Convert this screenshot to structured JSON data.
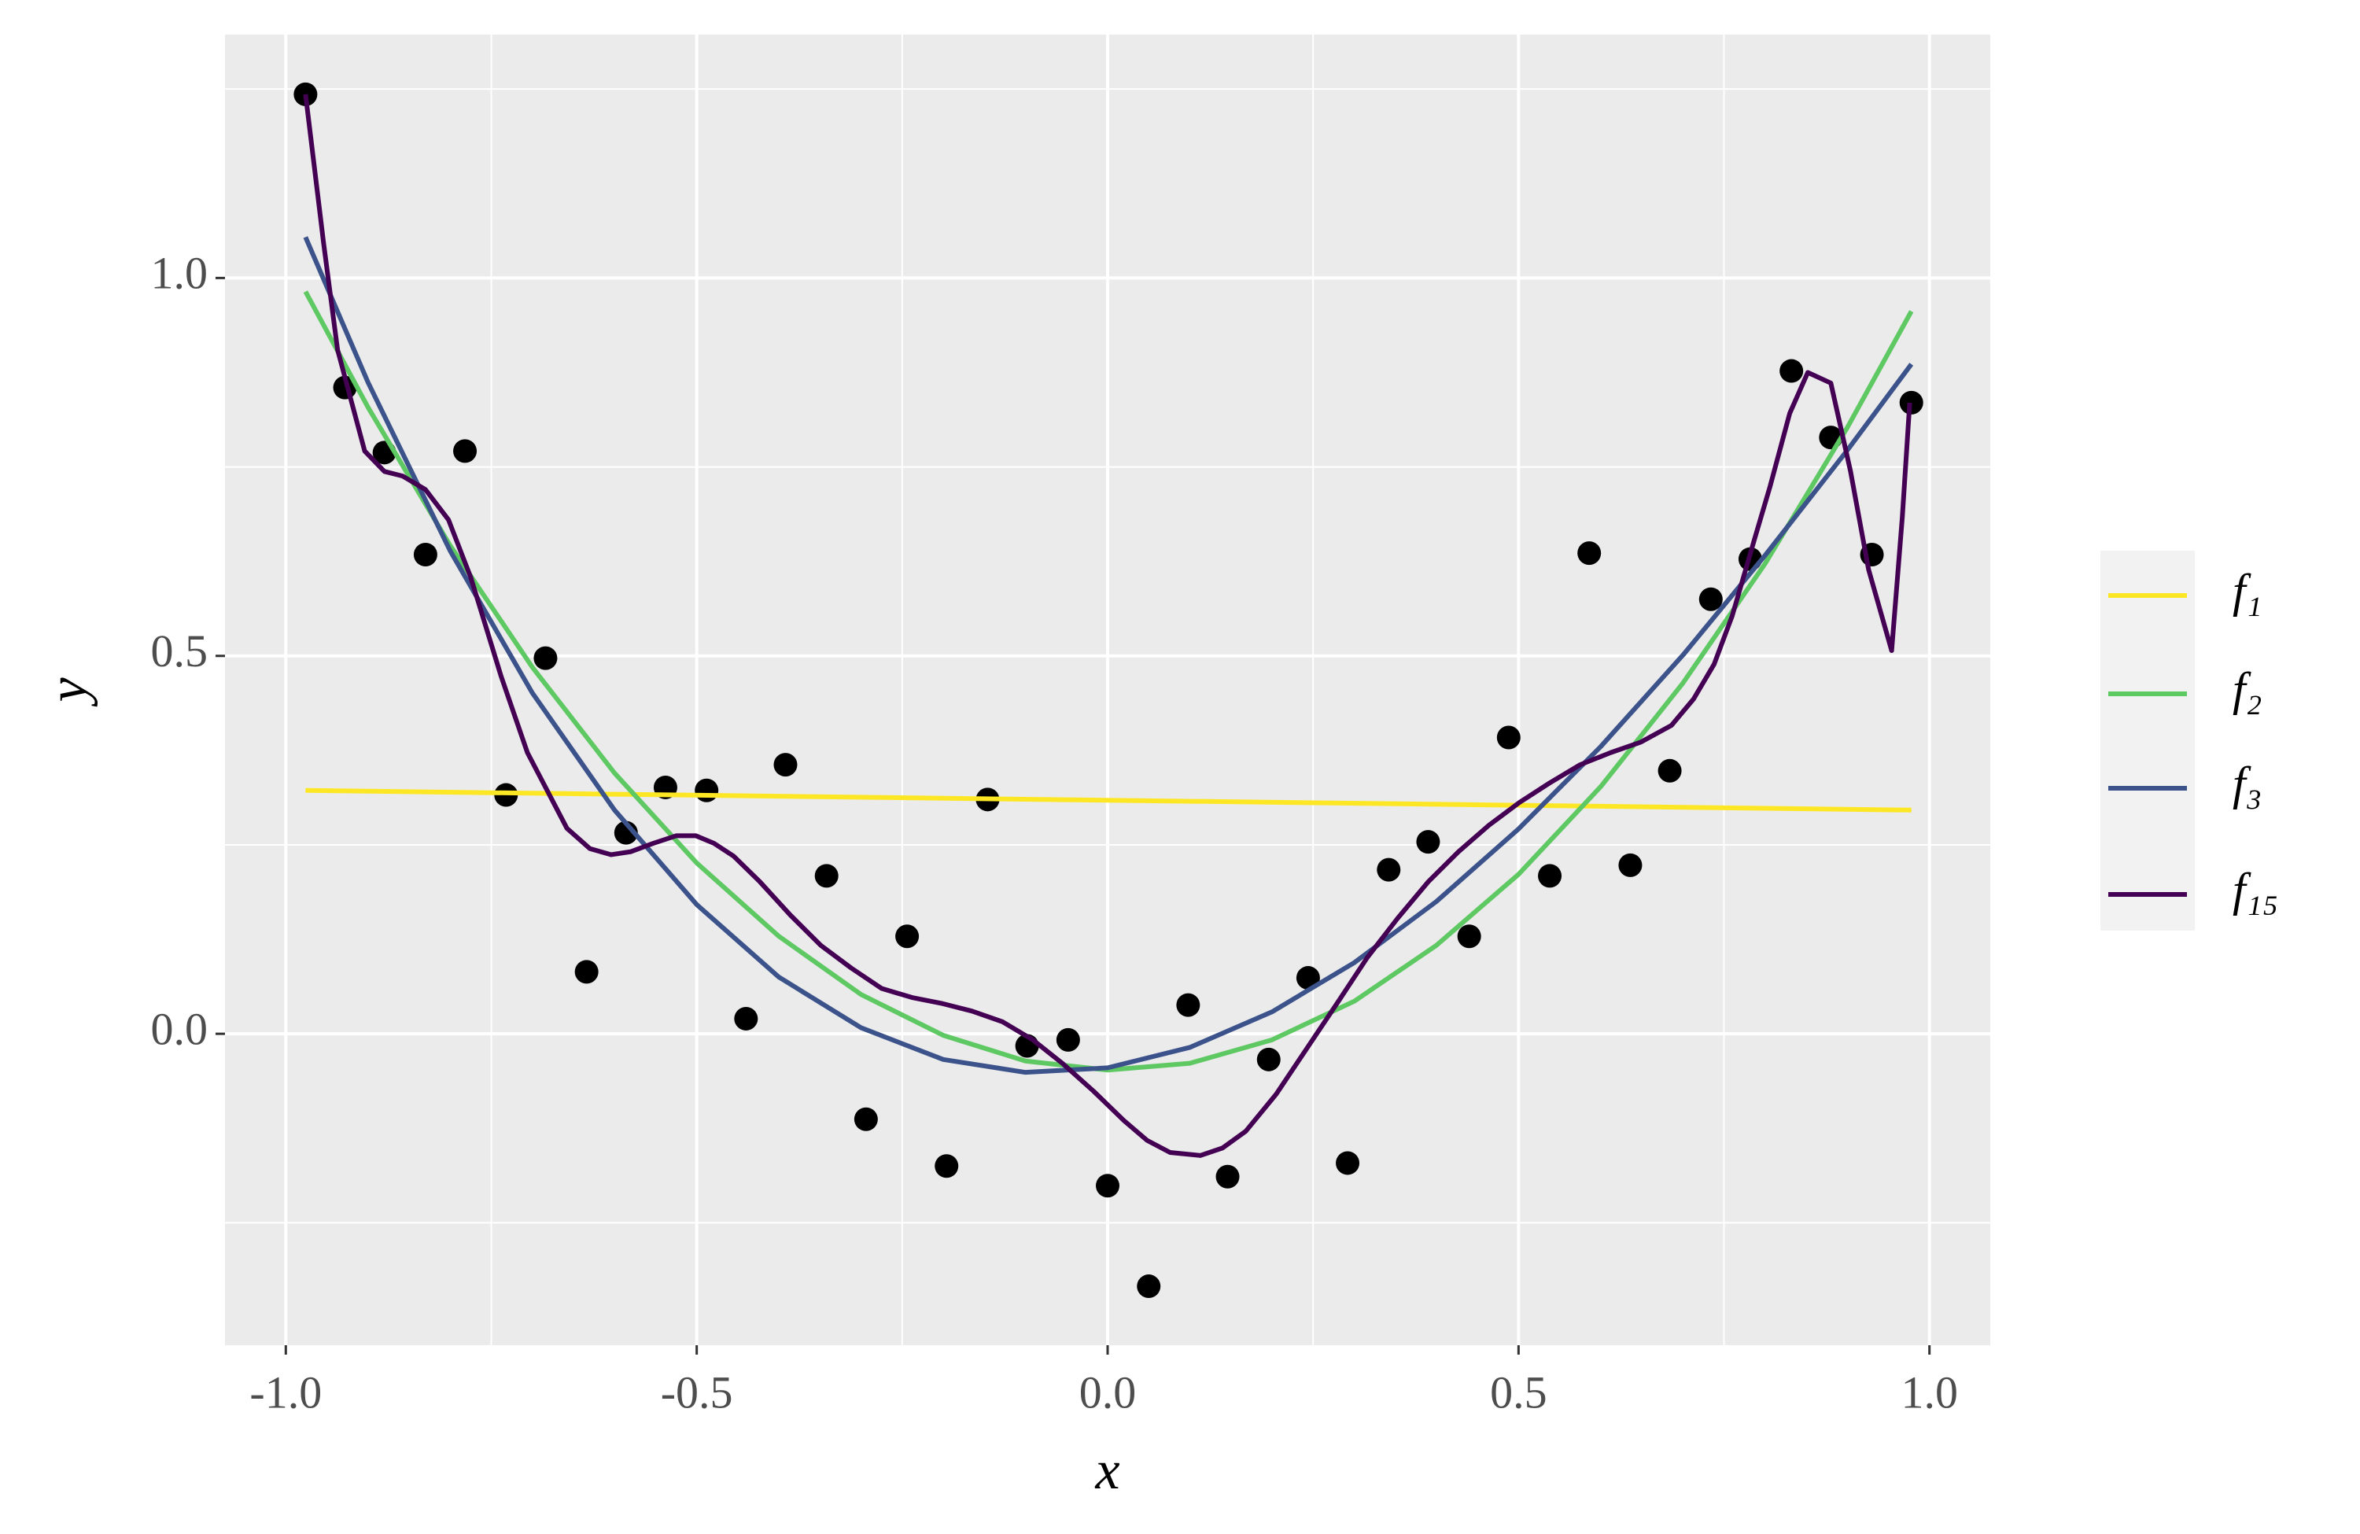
{
  "chart_data": {
    "type": "line",
    "x_label": "x",
    "y_label": "y",
    "xlim": [
      -1.074,
      1.074
    ],
    "ylim": [
      -0.412,
      1.322
    ],
    "xticks": [
      {
        "value": -1,
        "label": "-1.0"
      },
      {
        "value": -0.5,
        "label": "-0.5"
      },
      {
        "value": 0,
        "label": "0.0"
      },
      {
        "value": 0.5,
        "label": "0.5"
      },
      {
        "value": 1,
        "label": "1.0"
      }
    ],
    "yticks": [
      {
        "value": 0,
        "label": "0.0"
      },
      {
        "value": 0.5,
        "label": "0.5"
      },
      {
        "value": 1,
        "label": "1.0"
      }
    ],
    "x_minor_grid": [
      -0.75,
      -0.25,
      0.25,
      0.75
    ],
    "y_minor_grid": [
      -0.25,
      0.25,
      0.75,
      1.25
    ],
    "grid": true,
    "legend": "right",
    "points": {
      "color": "#000000",
      "x": [
        -0.976,
        -0.928,
        -0.88,
        -0.83,
        -0.782,
        -0.732,
        -0.684,
        -0.634,
        -0.586,
        -0.538,
        -0.488,
        -0.44,
        -0.392,
        -0.342,
        -0.294,
        -0.244,
        -0.196,
        -0.146,
        -0.098,
        -0.048,
        0.0,
        0.05,
        0.098,
        0.146,
        0.196,
        0.244,
        0.292,
        0.342,
        0.39,
        0.44,
        0.488,
        0.538,
        0.586,
        0.636,
        0.684,
        0.734,
        0.782,
        0.832,
        0.88,
        0.93,
        0.978
      ],
      "y": [
        1.243,
        0.855,
        0.769,
        0.634,
        0.771,
        0.316,
        0.497,
        0.082,
        0.266,
        0.326,
        0.322,
        0.02,
        0.356,
        0.209,
        -0.113,
        0.129,
        -0.175,
        0.31,
        -0.016,
        -0.008,
        -0.201,
        -0.334,
        0.038,
        -0.189,
        -0.034,
        0.074,
        -0.171,
        0.217,
        0.254,
        0.129,
        0.392,
        0.209,
        0.636,
        0.223,
        0.348,
        0.575,
        0.628,
        0.877,
        0.789,
        0.634,
        0.835
      ]
    },
    "series": [
      {
        "name": "f₁",
        "color": "#fde725",
        "x": [
          -0.976,
          0.978
        ],
        "values": [
          0.322,
          0.296
        ]
      },
      {
        "name": "f₂",
        "color": "#5ec962",
        "x": [
          -0.976,
          -0.9,
          -0.8,
          -0.7,
          -0.6,
          -0.5,
          -0.4,
          -0.3,
          -0.2,
          -0.1,
          0,
          0.1,
          0.2,
          0.3,
          0.4,
          0.5,
          0.6,
          0.7,
          0.8,
          0.9,
          0.978
        ],
        "values": [
          0.982,
          0.829,
          0.646,
          0.485,
          0.345,
          0.226,
          0.129,
          0.052,
          -0.002,
          -0.036,
          -0.048,
          -0.039,
          -0.008,
          0.043,
          0.117,
          0.211,
          0.327,
          0.464,
          0.622,
          0.802,
          0.956
        ]
      },
      {
        "name": "f₃",
        "color": "#3b528b",
        "x": [
          -0.976,
          -0.9,
          -0.8,
          -0.7,
          -0.6,
          -0.5,
          -0.4,
          -0.3,
          -0.2,
          -0.1,
          0,
          0.1,
          0.2,
          0.3,
          0.4,
          0.5,
          0.6,
          0.7,
          0.8,
          0.9,
          0.978
        ],
        "values": [
          1.054,
          0.862,
          0.639,
          0.451,
          0.296,
          0.171,
          0.075,
          0.008,
          -0.034,
          -0.051,
          -0.045,
          -0.018,
          0.029,
          0.094,
          0.175,
          0.271,
          0.38,
          0.501,
          0.633,
          0.772,
          0.886
        ]
      },
      {
        "name": "f₁₅",
        "color": "#440154",
        "x": [
          -0.976,
          -0.954,
          -0.937,
          -0.904,
          -0.88,
          -0.858,
          -0.83,
          -0.802,
          -0.775,
          -0.738,
          -0.706,
          -0.682,
          -0.658,
          -0.63,
          -0.604,
          -0.58,
          -0.553,
          -0.525,
          -0.501,
          -0.479,
          -0.455,
          -0.423,
          -0.386,
          -0.349,
          -0.312,
          -0.275,
          -0.238,
          -0.201,
          -0.165,
          -0.128,
          -0.091,
          -0.054,
          -0.017,
          0.02,
          0.048,
          0.076,
          0.113,
          0.14,
          0.168,
          0.205,
          0.242,
          0.279,
          0.316,
          0.353,
          0.39,
          0.427,
          0.464,
          0.501,
          0.538,
          0.575,
          0.612,
          0.649,
          0.686,
          0.713,
          0.738,
          0.76,
          0.787,
          0.806,
          0.83,
          0.852,
          0.88,
          0.904,
          0.926,
          0.954,
          0.967,
          0.976
        ],
        "values": [
          1.243,
          1.046,
          0.905,
          0.771,
          0.744,
          0.738,
          0.72,
          0.68,
          0.604,
          0.473,
          0.372,
          0.322,
          0.272,
          0.245,
          0.237,
          0.241,
          0.252,
          0.262,
          0.262,
          0.252,
          0.235,
          0.201,
          0.157,
          0.117,
          0.087,
          0.06,
          0.048,
          0.04,
          0.03,
          0.016,
          -0.008,
          -0.04,
          -0.076,
          -0.115,
          -0.141,
          -0.157,
          -0.161,
          -0.151,
          -0.129,
          -0.08,
          -0.02,
          0.04,
          0.101,
          0.153,
          0.201,
          0.241,
          0.276,
          0.306,
          0.332,
          0.356,
          0.372,
          0.386,
          0.408,
          0.443,
          0.489,
          0.553,
          0.654,
          0.724,
          0.821,
          0.875,
          0.861,
          0.744,
          0.614,
          0.507,
          0.684,
          0.835
        ]
      }
    ]
  }
}
